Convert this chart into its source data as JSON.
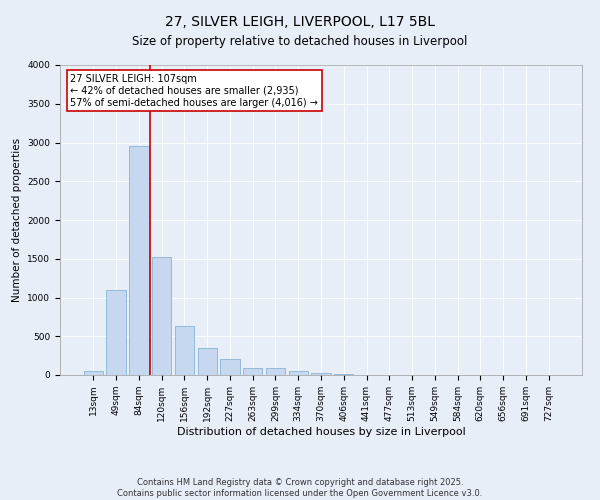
{
  "title": "27, SILVER LEIGH, LIVERPOOL, L17 5BL",
  "subtitle": "Size of property relative to detached houses in Liverpool",
  "xlabel": "Distribution of detached houses by size in Liverpool",
  "ylabel": "Number of detached properties",
  "categories": [
    "13sqm",
    "49sqm",
    "84sqm",
    "120sqm",
    "156sqm",
    "192sqm",
    "227sqm",
    "263sqm",
    "299sqm",
    "334sqm",
    "370sqm",
    "406sqm",
    "441sqm",
    "477sqm",
    "513sqm",
    "549sqm",
    "584sqm",
    "620sqm",
    "656sqm",
    "691sqm",
    "727sqm"
  ],
  "values": [
    50,
    1100,
    2960,
    1520,
    630,
    350,
    210,
    95,
    95,
    55,
    30,
    15,
    5,
    0,
    0,
    0,
    0,
    0,
    0,
    0,
    0
  ],
  "bar_color": "#c5d8f0",
  "bar_edge_color": "#7aaad0",
  "vline_x_index": 2.5,
  "vline_color": "#cc0000",
  "annotation_text": "27 SILVER LEIGH: 107sqm\n← 42% of detached houses are smaller (2,935)\n57% of semi-detached houses are larger (4,016) →",
  "annotation_box_facecolor": "#ffffff",
  "annotation_box_edgecolor": "#cc0000",
  "ylim": [
    0,
    4000
  ],
  "yticks": [
    0,
    500,
    1000,
    1500,
    2000,
    2500,
    3000,
    3500,
    4000
  ],
  "background_color": "#e8eef8",
  "plot_background_color": "#e8eef8",
  "footer_line1": "Contains HM Land Registry data © Crown copyright and database right 2025.",
  "footer_line2": "Contains public sector information licensed under the Open Government Licence v3.0.",
  "title_fontsize": 10,
  "subtitle_fontsize": 8.5,
  "xlabel_fontsize": 8,
  "ylabel_fontsize": 7.5,
  "tick_fontsize": 6.5,
  "footer_fontsize": 6,
  "annotation_fontsize": 7
}
